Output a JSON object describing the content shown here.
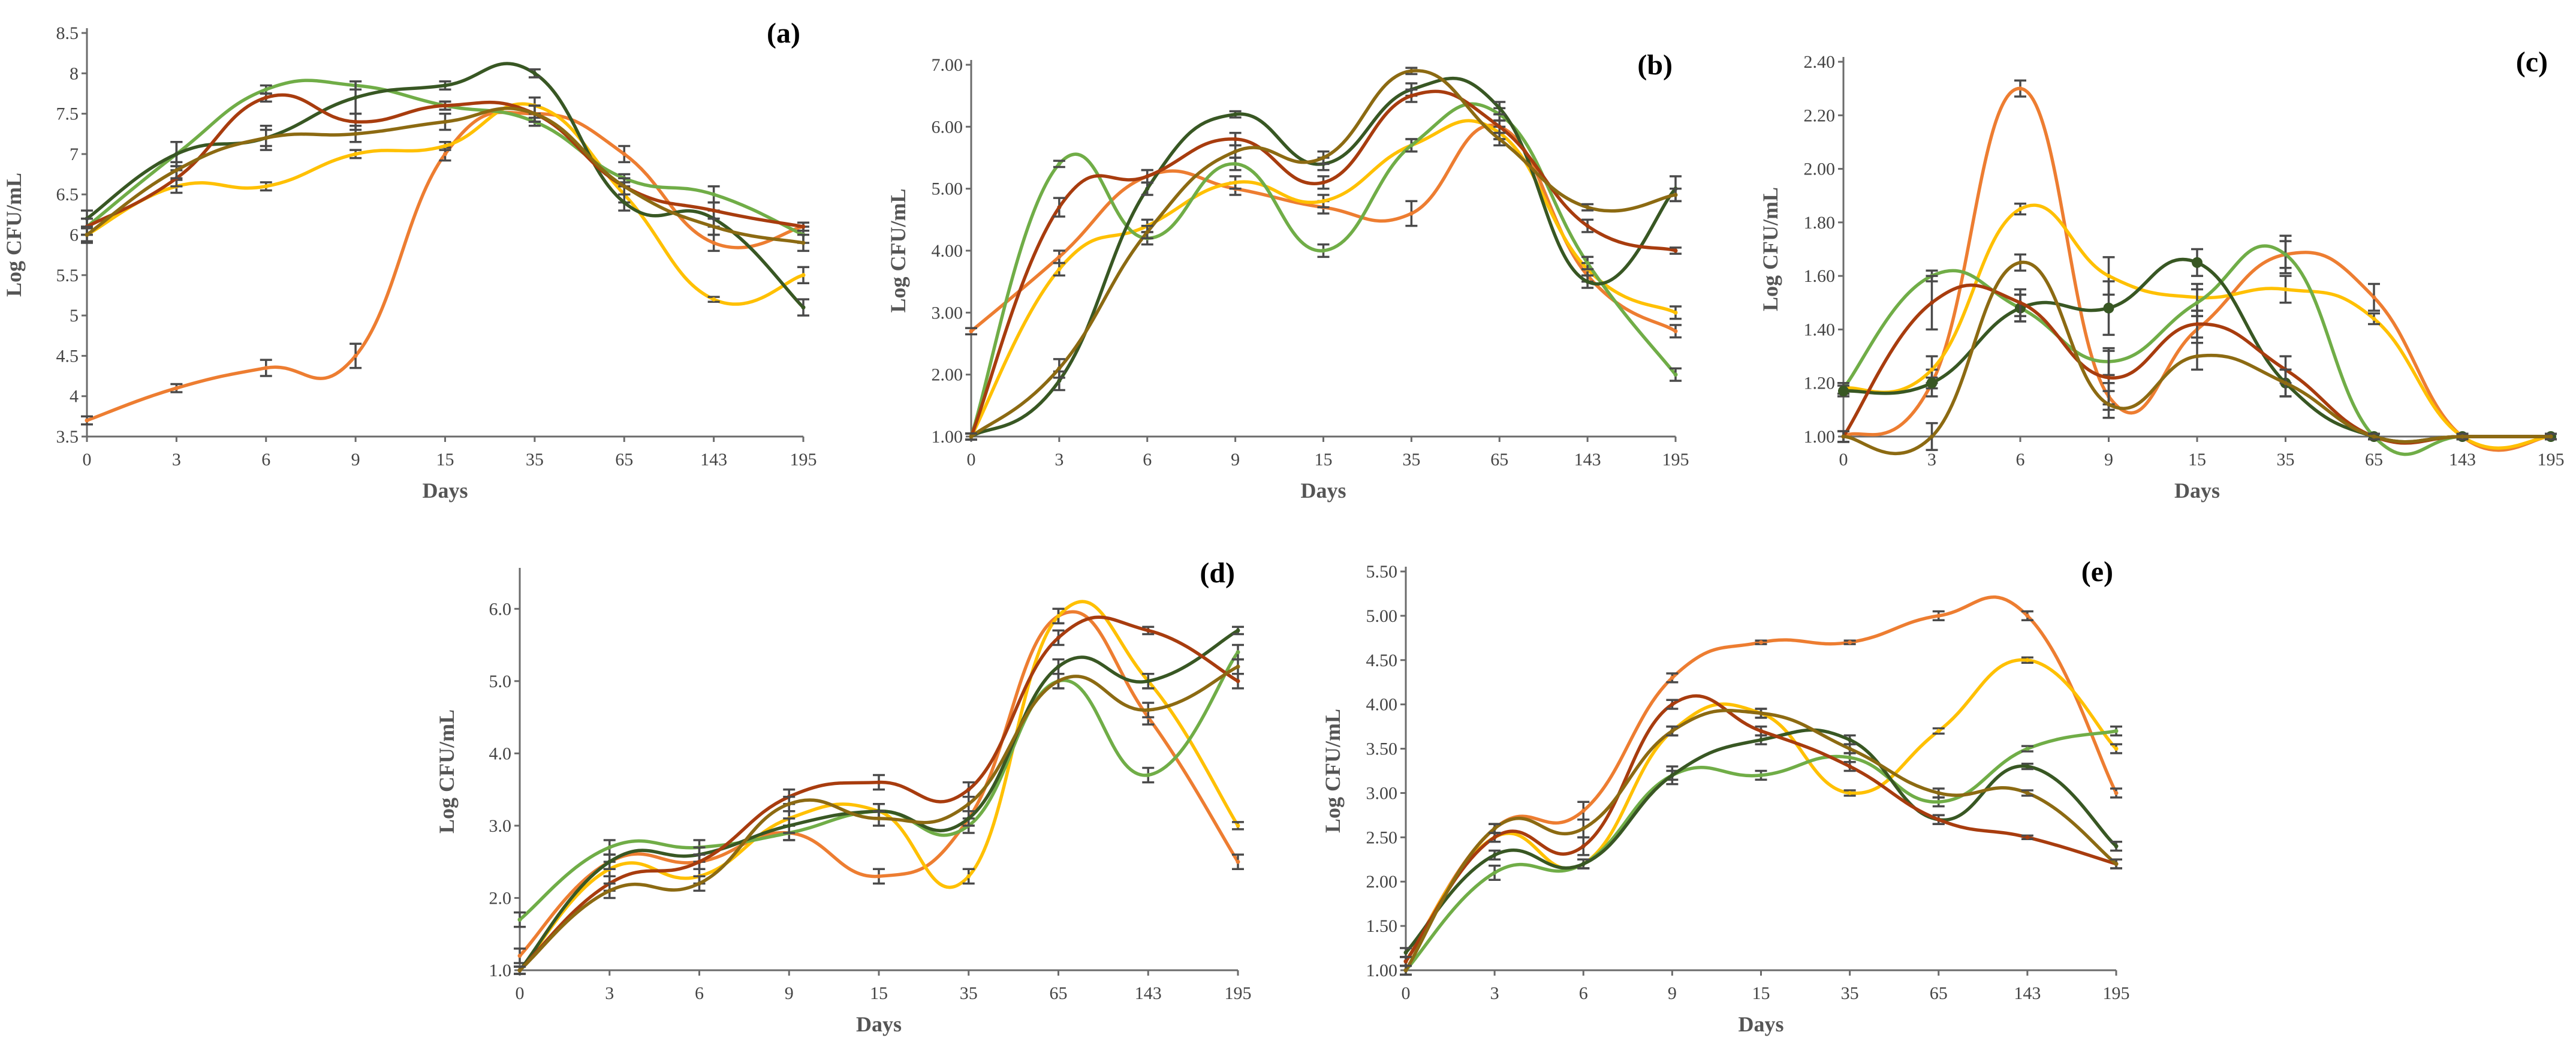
{
  "colors": {
    "orange": "#ED7D31",
    "yellow": "#FFC000",
    "lightgreen": "#70AD47",
    "darkgreen": "#385723",
    "darkred": "#A83C0E",
    "olive": "#8C6A12",
    "axis": "#6b6b6b",
    "errorbar": "#4a4a4a"
  },
  "chart_data": [
    {
      "id": "a",
      "type": "line",
      "panel_label": "(a)",
      "xlabel": "Days",
      "ylabel": "Log CFU/mL",
      "categories": [
        "0",
        "3",
        "6",
        "9",
        "15",
        "35",
        "65",
        "143",
        "195"
      ],
      "ylim": [
        3.5,
        8.5
      ],
      "yticks": [
        "3.5",
        "4",
        "4.5",
        "5",
        "5.5",
        "6",
        "6.5",
        "7",
        "7.5",
        "8",
        "8.5"
      ],
      "y_tick_values": [
        3.5,
        4,
        4.5,
        5,
        5.5,
        6,
        6.5,
        7,
        7.5,
        8,
        8.5
      ],
      "series": [
        {
          "color": "orange",
          "values": [
            3.7,
            4.1,
            4.35,
            4.5,
            7.0,
            7.5,
            7.0,
            5.9,
            6.1
          ],
          "errors": [
            0.05,
            0.05,
            0.1,
            0.15,
            0.08,
            0.1,
            0.1,
            0.1,
            0.05
          ]
        },
        {
          "color": "yellow",
          "values": [
            6.0,
            6.6,
            6.6,
            7.0,
            7.1,
            7.6,
            6.5,
            5.2,
            5.5
          ],
          "errors": [
            0.08,
            0.08,
            0.05,
            0.05,
            0.05,
            0.1,
            0.1,
            0.03,
            0.1
          ]
        },
        {
          "color": "lightgreen",
          "values": [
            6.1,
            7.0,
            7.8,
            7.85,
            7.6,
            7.4,
            6.7,
            6.5,
            6.0
          ],
          "errors": [
            0.1,
            0.15,
            0.05,
            0.05,
            0.05,
            0.05,
            0.05,
            0.1,
            0.1
          ]
        },
        {
          "color": "darkgreen",
          "values": [
            6.2,
            7.0,
            7.2,
            7.7,
            7.85,
            8.0,
            6.4,
            6.2,
            5.1
          ],
          "errors": [
            0.1,
            0.15,
            0.15,
            0.2,
            0.05,
            0.05,
            0.1,
            0.1,
            0.1
          ]
        },
        {
          "color": "darkred",
          "values": [
            6.1,
            6.7,
            7.7,
            7.4,
            7.6,
            7.5,
            6.6,
            6.3,
            6.1
          ],
          "errors": [
            0.1,
            0.1,
            0.05,
            0.1,
            0.05,
            0.1,
            0.1,
            0.1,
            0.05
          ]
        },
        {
          "color": "olive",
          "values": [
            6.0,
            6.8,
            7.2,
            7.25,
            7.4,
            7.5,
            6.6,
            6.1,
            5.9
          ],
          "errors": [
            0.1,
            0.1,
            0.1,
            0.1,
            0.1,
            0.1,
            0.1,
            0.1,
            0.1
          ]
        }
      ]
    },
    {
      "id": "b",
      "type": "line",
      "panel_label": "(b)",
      "xlabel": "Days",
      "ylabel": "Log CFU/mL",
      "categories": [
        "0",
        "3",
        "6",
        "9",
        "15",
        "35",
        "65",
        "143",
        "195"
      ],
      "ylim": [
        1.0,
        7.0
      ],
      "yticks": [
        "1.00",
        "2.00",
        "3.00",
        "4.00",
        "5.00",
        "6.00",
        "7.00"
      ],
      "y_tick_values": [
        1,
        2,
        3,
        4,
        5,
        6,
        7
      ],
      "series": [
        {
          "color": "orange",
          "values": [
            2.7,
            3.9,
            5.2,
            5.0,
            4.7,
            4.6,
            6.0,
            3.6,
            2.7
          ],
          "errors": [
            0.05,
            0.1,
            0.1,
            0.1,
            0.1,
            0.2,
            0.2,
            0.1,
            0.1
          ]
        },
        {
          "color": "yellow",
          "values": [
            1.0,
            3.7,
            4.4,
            5.1,
            4.8,
            5.7,
            5.9,
            3.7,
            3.0
          ],
          "errors": [
            0.05,
            0.1,
            0.1,
            0.1,
            0.1,
            0.1,
            0.1,
            0.1,
            0.1
          ]
        },
        {
          "color": "lightgreen",
          "values": [
            1.0,
            5.4,
            4.2,
            5.4,
            4.0,
            5.7,
            6.2,
            3.8,
            2.0
          ],
          "errors": [
            0.05,
            0.05,
            0.1,
            0.1,
            0.1,
            0.1,
            0.1,
            0.1,
            0.1
          ]
        },
        {
          "color": "darkgreen",
          "values": [
            1.0,
            1.9,
            5.0,
            6.2,
            5.4,
            6.6,
            6.3,
            3.5,
            5.0
          ],
          "errors": [
            0.05,
            0.15,
            0.1,
            0.05,
            0.1,
            0.1,
            0.1,
            0.1,
            0.2
          ]
        },
        {
          "color": "darkred",
          "values": [
            1.0,
            4.7,
            5.2,
            5.8,
            5.1,
            6.5,
            6.0,
            4.4,
            4.0
          ],
          "errors": [
            0.05,
            0.15,
            0.1,
            0.1,
            0.1,
            0.1,
            0.1,
            0.1,
            0.05
          ]
        },
        {
          "color": "olive",
          "values": [
            1.0,
            2.1,
            4.3,
            5.6,
            5.5,
            6.9,
            5.8,
            4.7,
            4.9
          ],
          "errors": [
            0.05,
            0.15,
            0.1,
            0.1,
            0.1,
            0.05,
            0.1,
            0.05,
            0.1
          ]
        }
      ]
    },
    {
      "id": "c",
      "type": "line",
      "panel_label": "(c)",
      "xlabel": "Days",
      "ylabel": "Log CFU/mL",
      "categories": [
        "0",
        "3",
        "6",
        "9",
        "15",
        "35",
        "65",
        "143",
        "195"
      ],
      "ylim": [
        1.0,
        2.4
      ],
      "yticks": [
        "1.00",
        "1.20",
        "1.40",
        "1.60",
        "1.80",
        "2.00",
        "2.20",
        "2.40"
      ],
      "y_tick_values": [
        1.0,
        1.2,
        1.4,
        1.6,
        1.8,
        2.0,
        2.2,
        2.4
      ],
      "series": [
        {
          "color": "orange",
          "values": [
            1.0,
            1.2,
            2.3,
            1.15,
            1.4,
            1.68,
            1.52,
            1.0,
            1.0
          ],
          "errors": [
            0.02,
            0.05,
            0.03,
            0.05,
            0.05,
            0.05,
            0.05,
            0.01,
            0.01
          ]
        },
        {
          "color": "yellow",
          "values": [
            1.18,
            1.25,
            1.85,
            1.6,
            1.52,
            1.55,
            1.44,
            1.0,
            1.0
          ],
          "errors": [
            0.02,
            0.05,
            0.02,
            0.07,
            0.05,
            0.05,
            0.02,
            0.01,
            0.01
          ]
        },
        {
          "color": "lightgreen",
          "values": [
            1.18,
            1.6,
            1.48,
            1.28,
            1.5,
            1.68,
            1.0,
            1.0,
            1.0
          ],
          "errors": [
            0.02,
            0.02,
            0.05,
            0.05,
            0.05,
            0.07,
            0.01,
            0.01,
            0.01
          ]
        },
        {
          "color": "darkgreen",
          "values": [
            1.17,
            1.2,
            1.48,
            1.48,
            1.65,
            1.2,
            1.0,
            1.0,
            1.0
          ],
          "errors": [
            0.02,
            0.02,
            0.05,
            0.1,
            0.05,
            0.05,
            0.01,
            0.01,
            0.01
          ],
          "markers": true
        },
        {
          "color": "darkred",
          "values": [
            1.0,
            1.5,
            1.5,
            1.22,
            1.42,
            1.25,
            1.0,
            1.0,
            1.0
          ],
          "errors": [
            0.02,
            0.1,
            0.05,
            0.1,
            0.05,
            0.05,
            0.01,
            0.01,
            0.01
          ]
        },
        {
          "color": "olive",
          "values": [
            1.0,
            1.0,
            1.65,
            1.12,
            1.3,
            1.2,
            1.0,
            1.0,
            1.0
          ],
          "errors": [
            0.02,
            0.05,
            0.03,
            0.05,
            0.05,
            0.05,
            0.01,
            0.01,
            0.01
          ]
        }
      ]
    },
    {
      "id": "d",
      "type": "line",
      "panel_label": "(d)",
      "xlabel": "Days",
      "ylabel": "Log CFU/mL",
      "categories": [
        "0",
        "3",
        "6",
        "9",
        "15",
        "35",
        "65",
        "143",
        "195"
      ],
      "ylim": [
        1.0,
        6.5
      ],
      "yticks": [
        "1.0",
        "2.0",
        "3.0",
        "4.0",
        "5.0",
        "6.0"
      ],
      "y_tick_values": [
        1,
        2,
        3,
        4,
        5,
        6
      ],
      "series": [
        {
          "color": "orange",
          "values": [
            1.2,
            2.5,
            2.5,
            2.9,
            2.3,
            3.1,
            5.9,
            4.5,
            2.5
          ],
          "errors": [
            0.1,
            0.1,
            0.1,
            0.1,
            0.1,
            0.1,
            0.1,
            0.1,
            0.1
          ]
        },
        {
          "color": "yellow",
          "values": [
            1.0,
            2.4,
            2.3,
            3.1,
            3.2,
            2.3,
            5.9,
            5.0,
            3.0
          ],
          "errors": [
            0.05,
            0.1,
            0.1,
            0.1,
            0.1,
            0.1,
            0.1,
            0.1,
            0.05
          ]
        },
        {
          "color": "lightgreen",
          "values": [
            1.7,
            2.7,
            2.7,
            2.9,
            3.2,
            3.0,
            5.0,
            3.7,
            5.4
          ],
          "errors": [
            0.1,
            0.1,
            0.1,
            0.1,
            0.1,
            0.1,
            0.1,
            0.1,
            0.1
          ]
        },
        {
          "color": "darkgreen",
          "values": [
            1.0,
            2.5,
            2.6,
            3.0,
            3.2,
            3.1,
            5.2,
            5.0,
            5.7
          ],
          "errors": [
            0.05,
            0.1,
            0.1,
            0.1,
            0.1,
            0.1,
            0.1,
            0.1,
            0.05
          ]
        },
        {
          "color": "darkred",
          "values": [
            1.0,
            2.2,
            2.5,
            3.4,
            3.6,
            3.5,
            5.6,
            5.7,
            5.0
          ],
          "errors": [
            0.05,
            0.1,
            0.1,
            0.1,
            0.1,
            0.1,
            0.1,
            0.05,
            0.1
          ]
        },
        {
          "color": "olive",
          "values": [
            1.0,
            2.1,
            2.2,
            3.3,
            3.1,
            3.3,
            5.0,
            4.6,
            5.2
          ],
          "errors": [
            0.05,
            0.1,
            0.1,
            0.1,
            0.1,
            0.1,
            0.1,
            0.1,
            0.1
          ]
        }
      ]
    },
    {
      "id": "e",
      "type": "line",
      "panel_label": "(e)",
      "xlabel": "Days",
      "ylabel": "Log CFU/mL",
      "categories": [
        "0",
        "3",
        "6",
        "9",
        "15",
        "35",
        "65",
        "143",
        "195"
      ],
      "ylim": [
        1.0,
        5.5
      ],
      "yticks": [
        "1.00",
        "1.50",
        "2.00",
        "2.50",
        "3.00",
        "3.50",
        "4.00",
        "4.50",
        "5.00",
        "5.50"
      ],
      "y_tick_values": [
        1.0,
        1.5,
        2.0,
        2.5,
        3.0,
        3.5,
        4.0,
        4.5,
        5.0,
        5.5
      ],
      "series": [
        {
          "color": "orange",
          "values": [
            1.1,
            2.6,
            2.8,
            4.3,
            4.7,
            4.7,
            5.0,
            5.0,
            3.0
          ],
          "errors": [
            0.05,
            0.05,
            0.1,
            0.05,
            0.02,
            0.02,
            0.05,
            0.05,
            0.05
          ]
        },
        {
          "color": "yellow",
          "values": [
            1.1,
            2.5,
            2.2,
            3.7,
            3.9,
            3.0,
            3.7,
            4.5,
            3.5
          ],
          "errors": [
            0.05,
            0.05,
            0.05,
            0.05,
            0.05,
            0.03,
            0.03,
            0.03,
            0.05
          ]
        },
        {
          "color": "lightgreen",
          "values": [
            1.0,
            2.1,
            2.2,
            3.2,
            3.2,
            3.4,
            2.9,
            3.5,
            3.7
          ],
          "errors": [
            0.05,
            0.08,
            0.05,
            0.05,
            0.05,
            0.05,
            0.05,
            0.03,
            0.05
          ]
        },
        {
          "color": "darkgreen",
          "values": [
            1.2,
            2.3,
            2.2,
            3.2,
            3.6,
            3.6,
            2.7,
            3.3,
            2.4
          ],
          "errors": [
            0.05,
            0.05,
            0.05,
            0.1,
            0.05,
            0.05,
            0.05,
            0.03,
            0.05
          ]
        },
        {
          "color": "darkred",
          "values": [
            1.1,
            2.5,
            2.4,
            4.0,
            3.7,
            3.3,
            2.7,
            2.5,
            2.2
          ],
          "errors": [
            0.05,
            0.05,
            0.1,
            0.05,
            0.05,
            0.05,
            0.05,
            0.02,
            0.05
          ]
        },
        {
          "color": "olive",
          "values": [
            1.0,
            2.6,
            2.6,
            3.7,
            3.9,
            3.5,
            3.0,
            3.0,
            2.2
          ],
          "errors": [
            0.05,
            0.05,
            0.1,
            0.05,
            0.05,
            0.05,
            0.05,
            0.03,
            0.05
          ]
        }
      ]
    }
  ]
}
